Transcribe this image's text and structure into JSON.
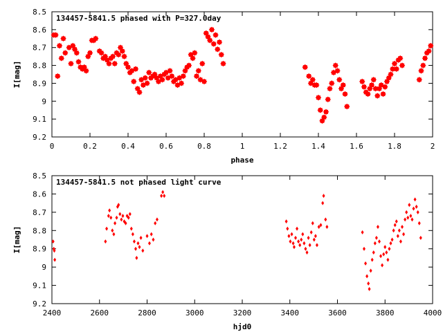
{
  "chart_data": [
    {
      "type": "scatter",
      "title": "134457-5841.5 phased with P=327.0day",
      "xlabel": "phase",
      "ylabel": "I[mag]",
      "xlim": [
        0,
        2
      ],
      "ylim": [
        9.2,
        8.5
      ],
      "y_inverted": true,
      "xticks": [
        "0",
        "0.2",
        "0.4",
        "0.6",
        "0.8",
        "1",
        "1.2",
        "1.4",
        "1.6",
        "1.8",
        "2"
      ],
      "yticks": [
        "8.5",
        "8.6",
        "8.7",
        "8.8",
        "8.9",
        "9",
        "9.1",
        "9.2"
      ],
      "marker_color": "#ff0000",
      "marker": "filled-star",
      "grid": false,
      "points": [
        [
          0.01,
          8.63
        ],
        [
          0.02,
          8.63
        ],
        [
          0.03,
          8.86
        ],
        [
          0.04,
          8.69
        ],
        [
          0.05,
          8.76
        ],
        [
          0.06,
          8.65
        ],
        [
          0.07,
          8.73
        ],
        [
          0.09,
          8.7
        ],
        [
          0.1,
          8.79
        ],
        [
          0.11,
          8.69
        ],
        [
          0.12,
          8.71
        ],
        [
          0.13,
          8.73
        ],
        [
          0.14,
          8.78
        ],
        [
          0.15,
          8.81
        ],
        [
          0.16,
          8.82
        ],
        [
          0.17,
          8.81
        ],
        [
          0.18,
          8.83
        ],
        [
          0.19,
          8.75
        ],
        [
          0.2,
          8.73
        ],
        [
          0.21,
          8.66
        ],
        [
          0.22,
          8.66
        ],
        [
          0.23,
          8.65
        ],
        [
          0.25,
          8.72
        ],
        [
          0.26,
          8.73
        ],
        [
          0.27,
          8.76
        ],
        [
          0.28,
          8.75
        ],
        [
          0.29,
          8.77
        ],
        [
          0.3,
          8.79
        ],
        [
          0.31,
          8.76
        ],
        [
          0.32,
          8.75
        ],
        [
          0.33,
          8.79
        ],
        [
          0.34,
          8.73
        ],
        [
          0.35,
          8.74
        ],
        [
          0.36,
          8.7
        ],
        [
          0.37,
          8.72
        ],
        [
          0.38,
          8.75
        ],
        [
          0.39,
          8.79
        ],
        [
          0.4,
          8.81
        ],
        [
          0.41,
          8.84
        ],
        [
          0.42,
          8.83
        ],
        [
          0.43,
          8.89
        ],
        [
          0.44,
          8.82
        ],
        [
          0.45,
          8.93
        ],
        [
          0.46,
          8.95
        ],
        [
          0.47,
          8.88
        ],
        [
          0.48,
          8.91
        ],
        [
          0.49,
          8.87
        ],
        [
          0.5,
          8.9
        ],
        [
          0.51,
          8.84
        ],
        [
          0.52,
          8.87
        ],
        [
          0.53,
          8.86
        ],
        [
          0.54,
          8.85
        ],
        [
          0.55,
          8.87
        ],
        [
          0.56,
          8.89
        ],
        [
          0.57,
          8.86
        ],
        [
          0.58,
          8.88
        ],
        [
          0.59,
          8.85
        ],
        [
          0.6,
          8.84
        ],
        [
          0.61,
          8.87
        ],
        [
          0.62,
          8.83
        ],
        [
          0.63,
          8.86
        ],
        [
          0.64,
          8.89
        ],
        [
          0.65,
          8.88
        ],
        [
          0.66,
          8.91
        ],
        [
          0.67,
          8.87
        ],
        [
          0.68,
          8.9
        ],
        [
          0.69,
          8.86
        ],
        [
          0.7,
          8.83
        ],
        [
          0.71,
          8.81
        ],
        [
          0.72,
          8.8
        ],
        [
          0.73,
          8.74
        ],
        [
          0.74,
          8.76
        ],
        [
          0.75,
          8.73
        ],
        [
          0.76,
          8.86
        ],
        [
          0.77,
          8.83
        ],
        [
          0.78,
          8.88
        ],
        [
          0.79,
          8.79
        ],
        [
          0.8,
          8.89
        ],
        [
          0.81,
          8.62
        ],
        [
          0.82,
          8.64
        ],
        [
          0.83,
          8.66
        ],
        [
          0.84,
          8.6
        ],
        [
          0.85,
          8.68
        ],
        [
          0.86,
          8.63
        ],
        [
          0.87,
          8.71
        ],
        [
          0.88,
          8.67
        ],
        [
          0.89,
          8.74
        ],
        [
          0.9,
          8.79
        ],
        [
          1.33,
          8.81
        ],
        [
          1.35,
          8.86
        ],
        [
          1.36,
          8.9
        ],
        [
          1.37,
          8.88
        ],
        [
          1.38,
          8.91
        ],
        [
          1.39,
          8.91
        ],
        [
          1.4,
          8.98
        ],
        [
          1.41,
          9.05
        ],
        [
          1.42,
          9.11
        ],
        [
          1.43,
          9.09
        ],
        [
          1.44,
          9.06
        ],
        [
          1.45,
          8.99
        ],
        [
          1.46,
          8.93
        ],
        [
          1.47,
          8.9
        ],
        [
          1.48,
          8.84
        ],
        [
          1.49,
          8.8
        ],
        [
          1.5,
          8.83
        ],
        [
          1.51,
          8.88
        ],
        [
          1.52,
          8.93
        ],
        [
          1.53,
          8.91
        ],
        [
          1.54,
          8.96
        ],
        [
          1.55,
          9.03
        ],
        [
          1.63,
          8.89
        ],
        [
          1.64,
          8.92
        ],
        [
          1.65,
          8.95
        ],
        [
          1.66,
          8.96
        ],
        [
          1.67,
          8.93
        ],
        [
          1.68,
          8.91
        ],
        [
          1.69,
          8.88
        ],
        [
          1.7,
          8.93
        ],
        [
          1.71,
          8.97
        ],
        [
          1.72,
          8.93
        ],
        [
          1.73,
          8.91
        ],
        [
          1.74,
          8.96
        ],
        [
          1.75,
          8.92
        ],
        [
          1.76,
          8.89
        ],
        [
          1.77,
          8.87
        ],
        [
          1.78,
          8.85
        ],
        [
          1.79,
          8.82
        ],
        [
          1.8,
          8.79
        ],
        [
          1.81,
          8.82
        ],
        [
          1.82,
          8.77
        ],
        [
          1.83,
          8.76
        ],
        [
          1.84,
          8.8
        ],
        [
          1.93,
          8.88
        ],
        [
          1.94,
          8.83
        ],
        [
          1.95,
          8.8
        ],
        [
          1.96,
          8.76
        ],
        [
          1.97,
          8.73
        ],
        [
          1.98,
          8.72
        ],
        [
          1.99,
          8.69
        ]
      ]
    },
    {
      "type": "scatter",
      "title": "134457-5841.5 not phased light curve",
      "xlabel": "hjd0",
      "ylabel": "I[mag]",
      "xlim": [
        2400,
        4000
      ],
      "ylim": [
        9.2,
        8.5
      ],
      "y_inverted": true,
      "xticks": [
        "2400",
        "2600",
        "2800",
        "3000",
        "3200",
        "3400",
        "3600",
        "3800",
        "4000"
      ],
      "yticks": [
        "8.5",
        "8.6",
        "8.7",
        "8.8",
        "8.9",
        "9",
        "9.1",
        "9.2"
      ],
      "marker_color": "#ff0000",
      "marker": "filled-diamond",
      "grid": false,
      "points": [
        [
          2405,
          8.86
        ],
        [
          2408,
          8.9
        ],
        [
          2410,
          8.91
        ],
        [
          2412,
          8.96
        ],
        [
          2625,
          8.86
        ],
        [
          2630,
          8.79
        ],
        [
          2638,
          8.72
        ],
        [
          2642,
          8.69
        ],
        [
          2648,
          8.73
        ],
        [
          2654,
          8.8
        ],
        [
          2660,
          8.82
        ],
        [
          2665,
          8.76
        ],
        [
          2672,
          8.73
        ],
        [
          2676,
          8.67
        ],
        [
          2680,
          8.66
        ],
        [
          2686,
          8.71
        ],
        [
          2692,
          8.74
        ],
        [
          2698,
          8.72
        ],
        [
          2704,
          8.75
        ],
        [
          2710,
          8.76
        ],
        [
          2716,
          8.72
        ],
        [
          2722,
          8.73
        ],
        [
          2728,
          8.71
        ],
        [
          2734,
          8.79
        ],
        [
          2740,
          8.82
        ],
        [
          2746,
          8.86
        ],
        [
          2752,
          8.9
        ],
        [
          2756,
          8.95
        ],
        [
          2762,
          8.87
        ],
        [
          2768,
          8.89
        ],
        [
          2774,
          8.84
        ],
        [
          2782,
          8.91
        ],
        [
          2800,
          8.83
        ],
        [
          2810,
          8.87
        ],
        [
          2818,
          8.82
        ],
        [
          2826,
          8.85
        ],
        [
          2834,
          8.76
        ],
        [
          2842,
          8.74
        ],
        [
          2860,
          8.61
        ],
        [
          2866,
          8.59
        ],
        [
          2872,
          8.61
        ],
        [
          3385,
          8.75
        ],
        [
          3390,
          8.79
        ],
        [
          3396,
          8.83
        ],
        [
          3402,
          8.86
        ],
        [
          3408,
          8.82
        ],
        [
          3414,
          8.87
        ],
        [
          3418,
          8.89
        ],
        [
          3424,
          8.84
        ],
        [
          3430,
          8.79
        ],
        [
          3436,
          8.86
        ],
        [
          3442,
          8.88
        ],
        [
          3448,
          8.85
        ],
        [
          3454,
          8.82
        ],
        [
          3460,
          8.87
        ],
        [
          3466,
          8.9
        ],
        [
          3472,
          8.92
        ],
        [
          3478,
          8.84
        ],
        [
          3484,
          8.88
        ],
        [
          3490,
          8.81
        ],
        [
          3496,
          8.76
        ],
        [
          3502,
          8.85
        ],
        [
          3508,
          8.83
        ],
        [
          3514,
          8.88
        ],
        [
          3522,
          8.78
        ],
        [
          3530,
          8.77
        ],
        [
          3538,
          8.65
        ],
        [
          3542,
          8.61
        ],
        [
          3550,
          8.74
        ],
        [
          3556,
          8.78
        ],
        [
          3705,
          8.81
        ],
        [
          3712,
          8.9
        ],
        [
          3718,
          8.98
        ],
        [
          3724,
          9.05
        ],
        [
          3730,
          9.09
        ],
        [
          3734,
          9.12
        ],
        [
          3740,
          9.02
        ],
        [
          3746,
          8.96
        ],
        [
          3752,
          8.92
        ],
        [
          3758,
          8.87
        ],
        [
          3764,
          8.84
        ],
        [
          3770,
          8.78
        ],
        [
          3776,
          8.86
        ],
        [
          3782,
          8.94
        ],
        [
          3788,
          8.99
        ],
        [
          3794,
          8.93
        ],
        [
          3800,
          8.89
        ],
        [
          3806,
          8.92
        ],
        [
          3812,
          8.96
        ],
        [
          3818,
          8.9
        ],
        [
          3824,
          8.87
        ],
        [
          3830,
          8.85
        ],
        [
          3836,
          8.8
        ],
        [
          3842,
          8.77
        ],
        [
          3848,
          8.75
        ],
        [
          3854,
          8.83
        ],
        [
          3860,
          8.8
        ],
        [
          3866,
          8.86
        ],
        [
          3872,
          8.78
        ],
        [
          3878,
          8.82
        ],
        [
          3884,
          8.74
        ],
        [
          3890,
          8.7
        ],
        [
          3896,
          8.73
        ],
        [
          3902,
          8.66
        ],
        [
          3908,
          8.72
        ],
        [
          3914,
          8.74
        ],
        [
          3920,
          8.68
        ],
        [
          3926,
          8.63
        ],
        [
          3932,
          8.67
        ],
        [
          3938,
          8.7
        ],
        [
          3944,
          8.76
        ],
        [
          3950,
          8.84
        ]
      ]
    }
  ]
}
